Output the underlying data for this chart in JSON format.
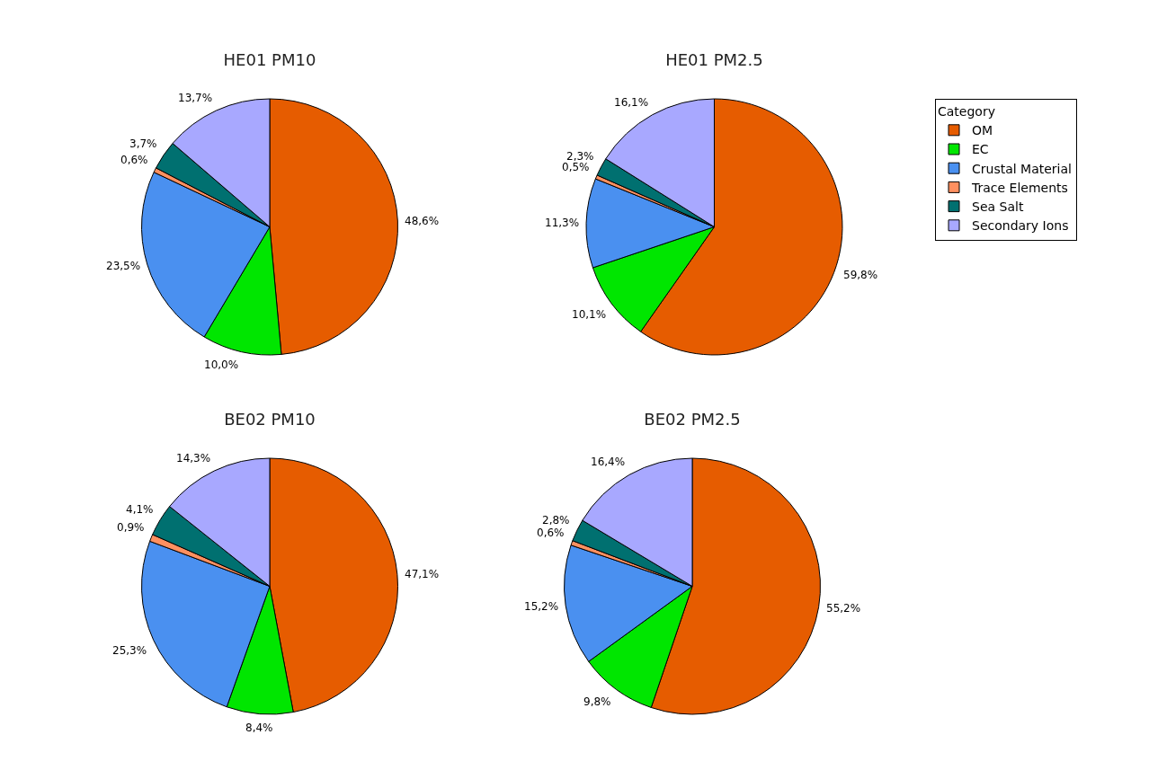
{
  "chart_data": [
    {
      "type": "pie",
      "title": "HE01 PM10",
      "values": [
        48.6,
        10.0,
        23.5,
        0.6,
        3.7,
        13.7
      ],
      "value_labels": [
        "48,6%",
        "10,0%",
        "23,5%",
        "0,6%",
        "3,7%",
        "13,7%"
      ],
      "colors": [
        "#e65c00",
        "#00e600",
        "#4a90f0",
        "#ff9060",
        "#007070",
        "#a8a8ff"
      ],
      "legend": false
    },
    {
      "type": "pie",
      "title": "HE01 PM2.5",
      "legend_title": "Category",
      "categories": [
        "OM",
        "EC",
        "Crustal Material",
        "Trace Elements",
        "Sea Salt",
        "Secondary Ions"
      ],
      "values": [
        59.8,
        10.1,
        11.3,
        0.5,
        2.3,
        16.1
      ],
      "value_labels": [
        "59,8%",
        "10,1%",
        "11,3%",
        "0,5%",
        "2,3%",
        "16,1%"
      ],
      "colors": [
        "#e65c00",
        "#00e600",
        "#4a90f0",
        "#ff9060",
        "#007070",
        "#a8a8ff"
      ],
      "legend": "top right"
    },
    {
      "type": "pie",
      "title": "BE02 PM10",
      "values": [
        47.1,
        8.4,
        25.3,
        0.9,
        4.1,
        14.3
      ],
      "value_labels": [
        "47,1%",
        "8,4%",
        "25,3%",
        "0,9%",
        "4,1%",
        "14,3%"
      ],
      "colors": [
        "#e65c00",
        "#00e600",
        "#4a90f0",
        "#ff9060",
        "#007070",
        "#a8a8ff"
      ],
      "legend": false
    },
    {
      "type": "pie",
      "title": "BE02 PM2.5",
      "values": [
        55.2,
        9.8,
        15.2,
        0.6,
        2.8,
        16.4
      ],
      "value_labels": [
        "55,2%",
        "9,8%",
        "15,2%",
        "0,6%",
        "2,8%",
        "16,4%"
      ],
      "colors": [
        "#e65c00",
        "#00e600",
        "#4a90f0",
        "#ff9060",
        "#007070",
        "#a8a8ff"
      ],
      "legend": false
    }
  ]
}
